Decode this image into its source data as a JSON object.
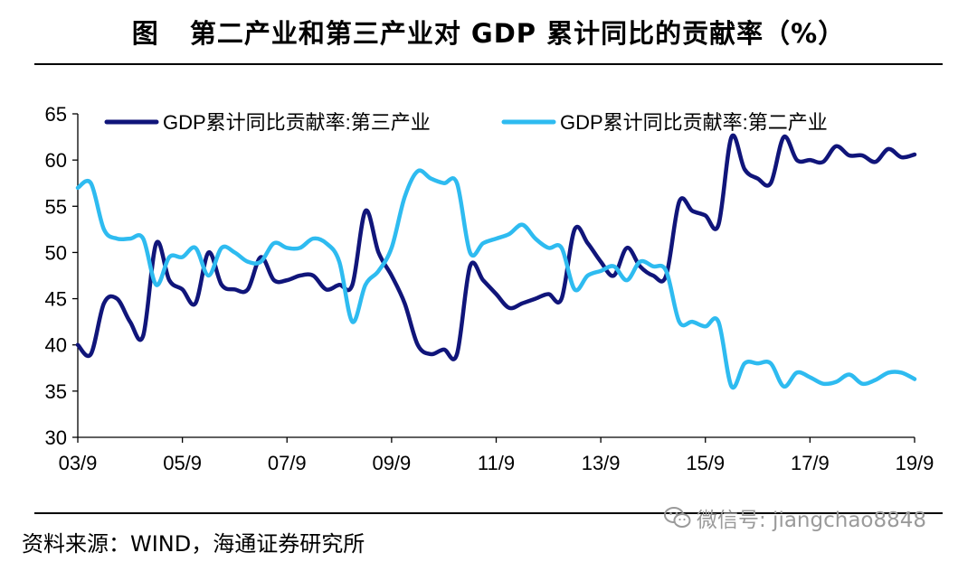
{
  "figure": {
    "label": "图",
    "title": "第二产业和第三产业对 GDP 累计同比的贡献率（%）",
    "source": "资料来源：WIND，海通证券研究所",
    "watermark": "微信号: jiangchao8848",
    "watermark_icon": "wechat-icon"
  },
  "chart_data": {
    "type": "line",
    "title": "第二产业和第三产业对 GDP 累计同比的贡献率（%）",
    "xlabel": "",
    "ylabel": "",
    "ylim": [
      30,
      65
    ],
    "yticks": [
      30,
      35,
      40,
      45,
      50,
      55,
      60,
      65
    ],
    "xlim": [
      2003.75,
      2019.75
    ],
    "xticks": [
      {
        "label": "03/9",
        "x": 2003.75
      },
      {
        "label": "05/9",
        "x": 2005.75
      },
      {
        "label": "07/9",
        "x": 2007.75
      },
      {
        "label": "09/9",
        "x": 2009.75
      },
      {
        "label": "11/9",
        "x": 2011.75
      },
      {
        "label": "13/9",
        "x": 2013.75
      },
      {
        "label": "15/9",
        "x": 2015.75
      },
      {
        "label": "17/9",
        "x": 2017.75
      },
      {
        "label": "19/9",
        "x": 2019.75
      }
    ],
    "grid": false,
    "legend_position": "top",
    "series": [
      {
        "name": "GDP累计同比贡献率:第三产业",
        "color": "#10157a",
        "points": [
          [
            2003.75,
            40.0
          ],
          [
            2004.0,
            39.0
          ],
          [
            2004.25,
            44.5
          ],
          [
            2004.5,
            45.0
          ],
          [
            2004.75,
            42.5
          ],
          [
            2005.0,
            41.0
          ],
          [
            2005.25,
            51.0
          ],
          [
            2005.5,
            47.0
          ],
          [
            2005.75,
            46.0
          ],
          [
            2006.0,
            44.5
          ],
          [
            2006.25,
            50.0
          ],
          [
            2006.5,
            46.5
          ],
          [
            2006.75,
            46.0
          ],
          [
            2007.0,
            46.0
          ],
          [
            2007.25,
            49.5
          ],
          [
            2007.5,
            47.0
          ],
          [
            2007.75,
            47.0
          ],
          [
            2008.0,
            47.5
          ],
          [
            2008.25,
            47.5
          ],
          [
            2008.5,
            46.0
          ],
          [
            2008.75,
            46.5
          ],
          [
            2009.0,
            46.5
          ],
          [
            2009.25,
            54.5
          ],
          [
            2009.5,
            50.0
          ],
          [
            2009.75,
            47.5
          ],
          [
            2010.0,
            44.5
          ],
          [
            2010.25,
            40.0
          ],
          [
            2010.5,
            39.0
          ],
          [
            2010.75,
            39.5
          ],
          [
            2011.0,
            39.0
          ],
          [
            2011.25,
            48.5
          ],
          [
            2011.5,
            47.0
          ],
          [
            2011.75,
            45.5
          ],
          [
            2012.0,
            44.0
          ],
          [
            2012.25,
            44.5
          ],
          [
            2012.5,
            45.0
          ],
          [
            2012.75,
            45.5
          ],
          [
            2013.0,
            45.0
          ],
          [
            2013.25,
            52.5
          ],
          [
            2013.5,
            51.0
          ],
          [
            2013.75,
            49.0
          ],
          [
            2014.0,
            47.5
          ],
          [
            2014.25,
            50.5
          ],
          [
            2014.5,
            48.5
          ],
          [
            2014.75,
            47.5
          ],
          [
            2015.0,
            47.5
          ],
          [
            2015.25,
            55.5
          ],
          [
            2015.5,
            54.5
          ],
          [
            2015.75,
            54.0
          ],
          [
            2016.0,
            53.0
          ],
          [
            2016.25,
            62.5
          ],
          [
            2016.5,
            59.0
          ],
          [
            2016.75,
            58.0
          ],
          [
            2017.0,
            57.5
          ],
          [
            2017.25,
            62.5
          ],
          [
            2017.5,
            60.0
          ],
          [
            2017.75,
            60.0
          ],
          [
            2018.0,
            59.8
          ],
          [
            2018.25,
            61.5
          ],
          [
            2018.5,
            60.5
          ],
          [
            2018.75,
            60.5
          ],
          [
            2019.0,
            59.8
          ],
          [
            2019.25,
            61.2
          ],
          [
            2019.5,
            60.3
          ],
          [
            2019.75,
            60.6
          ]
        ]
      },
      {
        "name": "GDP累计同比贡献率:第二产业",
        "color": "#2ebbf0",
        "points": [
          [
            2003.75,
            57.0
          ],
          [
            2004.0,
            57.5
          ],
          [
            2004.25,
            52.5
          ],
          [
            2004.5,
            51.5
          ],
          [
            2004.75,
            51.5
          ],
          [
            2005.0,
            51.5
          ],
          [
            2005.25,
            46.5
          ],
          [
            2005.5,
            49.5
          ],
          [
            2005.75,
            49.5
          ],
          [
            2006.0,
            50.5
          ],
          [
            2006.25,
            47.5
          ],
          [
            2006.5,
            50.5
          ],
          [
            2006.75,
            50.0
          ],
          [
            2007.0,
            49.0
          ],
          [
            2007.25,
            49.0
          ],
          [
            2007.5,
            51.0
          ],
          [
            2007.75,
            50.5
          ],
          [
            2008.0,
            50.5
          ],
          [
            2008.25,
            51.5
          ],
          [
            2008.5,
            51.0
          ],
          [
            2008.75,
            49.0
          ],
          [
            2009.0,
            42.5
          ],
          [
            2009.25,
            46.5
          ],
          [
            2009.5,
            48.0
          ],
          [
            2009.75,
            50.5
          ],
          [
            2010.0,
            56.0
          ],
          [
            2010.25,
            58.8
          ],
          [
            2010.5,
            58.0
          ],
          [
            2010.75,
            57.5
          ],
          [
            2011.0,
            57.5
          ],
          [
            2011.25,
            50.0
          ],
          [
            2011.5,
            51.0
          ],
          [
            2011.75,
            51.5
          ],
          [
            2012.0,
            52.0
          ],
          [
            2012.25,
            53.0
          ],
          [
            2012.5,
            51.5
          ],
          [
            2012.75,
            50.5
          ],
          [
            2013.0,
            50.5
          ],
          [
            2013.25,
            46.0
          ],
          [
            2013.5,
            47.5
          ],
          [
            2013.75,
            48.0
          ],
          [
            2014.0,
            48.5
          ],
          [
            2014.25,
            47.0
          ],
          [
            2014.5,
            49.0
          ],
          [
            2014.75,
            48.5
          ],
          [
            2015.0,
            48.0
          ],
          [
            2015.25,
            42.5
          ],
          [
            2015.5,
            42.5
          ],
          [
            2015.75,
            42.0
          ],
          [
            2016.0,
            42.5
          ],
          [
            2016.25,
            35.5
          ],
          [
            2016.5,
            38.0
          ],
          [
            2016.75,
            38.0
          ],
          [
            2017.0,
            38.0
          ],
          [
            2017.25,
            35.5
          ],
          [
            2017.5,
            37.0
          ],
          [
            2017.75,
            36.5
          ],
          [
            2018.0,
            35.8
          ],
          [
            2018.25,
            36.0
          ],
          [
            2018.5,
            36.8
          ],
          [
            2018.75,
            35.8
          ],
          [
            2019.0,
            36.2
          ],
          [
            2019.25,
            37.0
          ],
          [
            2019.5,
            37.0
          ],
          [
            2019.75,
            36.3
          ]
        ]
      }
    ]
  }
}
